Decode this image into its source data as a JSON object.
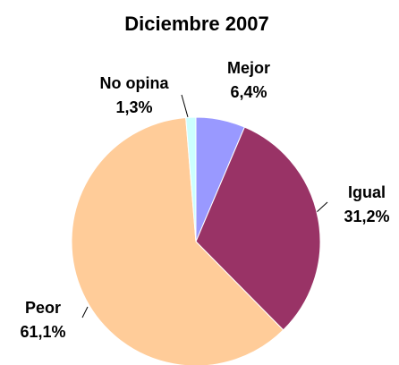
{
  "chart_data": {
    "type": "pie",
    "title": "Diciembre 2007",
    "categories": [
      "Mejor",
      "Igual",
      "Peor",
      "No opina"
    ],
    "values": [
      6.4,
      31.2,
      61.1,
      1.3
    ],
    "value_labels": [
      "6,4%",
      "31,2%",
      "61,1%",
      "1,3%"
    ],
    "colors": [
      "#9999ff",
      "#993366",
      "#ffcc99",
      "#ccffff"
    ]
  }
}
